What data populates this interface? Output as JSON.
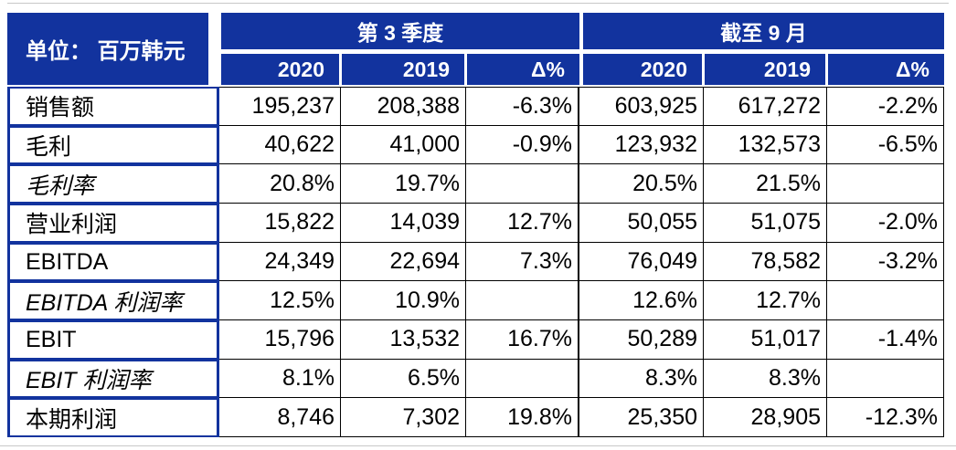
{
  "header": {
    "unit_label": "单位： 百万韩元",
    "groups": [
      {
        "label": "第 3 季度"
      },
      {
        "label": "截至 9 月"
      }
    ],
    "sub_headers": [
      "2020",
      "2019",
      "Δ%",
      "2020",
      "2019",
      "Δ%"
    ]
  },
  "rows": [
    {
      "label": "销售额",
      "italic": false,
      "values": [
        "195,237",
        "208,388",
        "-6.3%",
        "603,925",
        "617,272",
        "-2.2%"
      ]
    },
    {
      "label": "毛利",
      "italic": false,
      "values": [
        "40,622",
        "41,000",
        "-0.9%",
        "123,932",
        "132,573",
        "-6.5%"
      ]
    },
    {
      "label": "毛利率",
      "italic": true,
      "values": [
        "20.8%",
        "19.7%",
        "",
        "20.5%",
        "21.5%",
        ""
      ]
    },
    {
      "label": "营业利润",
      "italic": false,
      "values": [
        "15,822",
        "14,039",
        "12.7%",
        "50,055",
        "51,075",
        "-2.0%"
      ]
    },
    {
      "label": "EBITDA",
      "italic": false,
      "values": [
        "24,349",
        "22,694",
        "7.3%",
        "76,049",
        "78,582",
        "-3.2%"
      ]
    },
    {
      "label": "EBITDA 利润率",
      "italic": true,
      "values": [
        "12.5%",
        "10.9%",
        "",
        "12.6%",
        "12.7%",
        ""
      ]
    },
    {
      "label": "EBIT",
      "italic": false,
      "values": [
        "15,796",
        "13,532",
        "16.7%",
        "50,289",
        "51,017",
        "-1.4%"
      ]
    },
    {
      "label": "EBIT 利润率",
      "italic": true,
      "values": [
        "8.1%",
        "6.5%",
        "",
        "8.3%",
        "8.3%",
        ""
      ]
    },
    {
      "label": "本期利润",
      "italic": false,
      "values": [
        "8,746",
        "7,302",
        "19.8%",
        "25,350",
        "28,905",
        "-12.3%"
      ]
    }
  ],
  "colors": {
    "header_blue": "#12339E",
    "grid_black": "#000000",
    "hairline_gray": "#C8C8C8",
    "header_text": "#FFFFFF",
    "body_text": "#000000"
  }
}
